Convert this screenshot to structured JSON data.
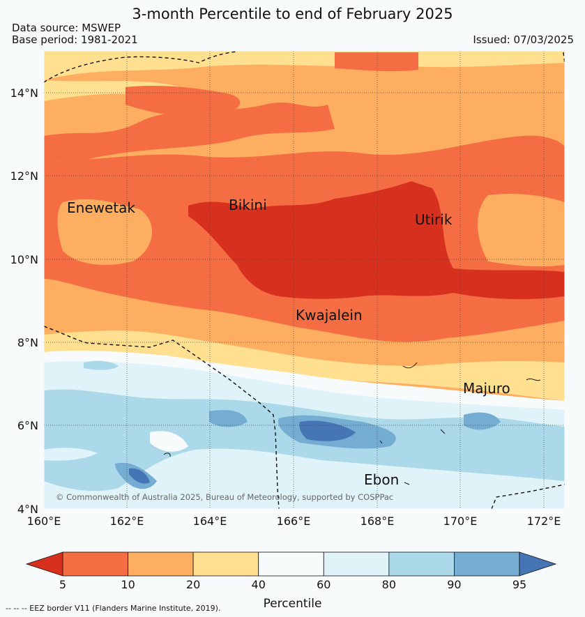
{
  "header": {
    "title": "3-month Percentile to end of February 2025",
    "data_source": "Data source: MSWEP",
    "base_period": "Base period: 1981-2021",
    "issued": "Issued: 07/03/2025"
  },
  "map": {
    "lon_range": [
      160,
      172.5
    ],
    "lat_range": [
      4,
      15
    ],
    "lon_ticks": [
      "160°E",
      "162°E",
      "164°E",
      "166°E",
      "168°E",
      "170°E",
      "172°E"
    ],
    "lat_ticks": [
      "4°N",
      "6°N",
      "8°N",
      "10°N",
      "12°N",
      "14°N"
    ],
    "places": [
      {
        "name": "Enewetak",
        "lon": 162.2,
        "lat": 11.4
      },
      {
        "name": "Bikini",
        "lon": 165.6,
        "lat": 11.5
      },
      {
        "name": "Utirik",
        "lon": 169.8,
        "lat": 11.3
      },
      {
        "name": "Kwajalein",
        "lon": 167.3,
        "lat": 8.8
      },
      {
        "name": "Majuro",
        "lon": 171.1,
        "lat": 7.1
      },
      {
        "name": "Ebon",
        "lon": 168.5,
        "lat": 4.8
      }
    ],
    "copyright": "© Commonwealth of Australia 2025, Bureau of Meteorology, supported by COSPPac"
  },
  "colorbar": {
    "labels": [
      "5",
      "10",
      "20",
      "40",
      "60",
      "80",
      "90",
      "95"
    ],
    "colors": [
      "#d7301f",
      "#f46d43",
      "#fdae61",
      "#fee090",
      "#f7fbfc",
      "#e0f3f8",
      "#abd9e9",
      "#74add1",
      "#4575b4"
    ],
    "title": "Percentile"
  },
  "footer": {
    "eez_note": "--  --  -- EEZ border V11 (Flanders Marine Institute, 2019)."
  }
}
